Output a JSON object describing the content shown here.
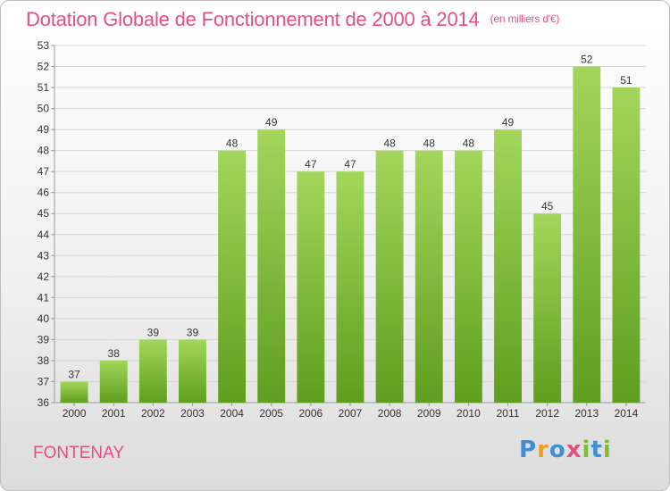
{
  "title": "Dotation Globale de Fonctionnement de 2000 à 2014",
  "subtitle": "(en milliers d'€)",
  "place": "FONTENAY",
  "logo": [
    "P",
    "r",
    "o",
    "x",
    "i",
    "t",
    "i"
  ],
  "colors": {
    "title": "#e2517f",
    "bar_top": "#a3d65a",
    "bar_bottom": "#5f9e1e",
    "grid": "#d6d6d6"
  },
  "chart_data": {
    "type": "bar",
    "title": "Dotation Globale de Fonctionnement de 2000 à 2014",
    "subtitle": "(en milliers d'€)",
    "xlabel": "",
    "ylabel": "",
    "categories": [
      "2000",
      "2001",
      "2002",
      "2003",
      "2004",
      "2005",
      "2006",
      "2007",
      "2008",
      "2009",
      "2010",
      "2011",
      "2012",
      "2013",
      "2014"
    ],
    "values": [
      37,
      38,
      39,
      39,
      48,
      49,
      47,
      47,
      48,
      48,
      48,
      49,
      45,
      52,
      51
    ],
    "ylim": [
      36,
      53
    ],
    "yticks": [
      36,
      37,
      38,
      39,
      40,
      41,
      42,
      43,
      44,
      45,
      46,
      47,
      48,
      49,
      50,
      51,
      52,
      53
    ],
    "grid": true,
    "legend": "none"
  }
}
